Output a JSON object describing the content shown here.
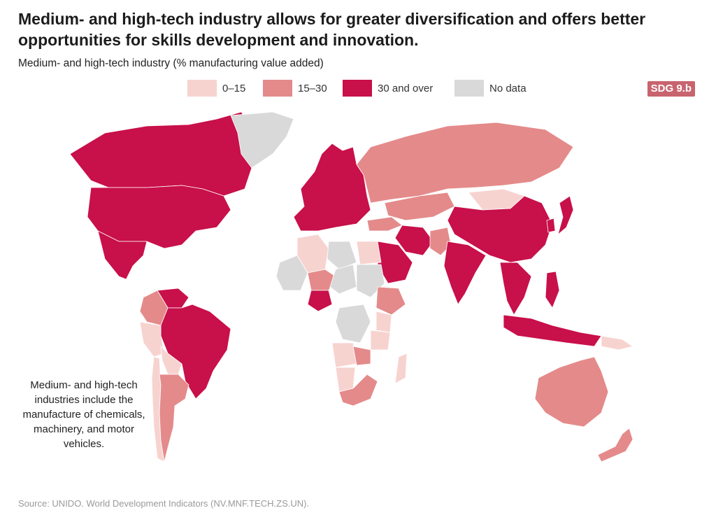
{
  "title": "Medium- and high-tech industry allows for greater diversification and offers better opportunities for skills development and innovation.",
  "subtitle": "Medium- and high-tech industry (% manufacturing value added)",
  "badge": "SDG 9.b",
  "legend": [
    {
      "label": "0–15",
      "color": "#f7d3d0"
    },
    {
      "label": "15–30",
      "color": "#e48a8a"
    },
    {
      "label": "30 and over",
      "color": "#c8104a"
    },
    {
      "label": "No data",
      "color": "#d9d9d9"
    }
  ],
  "note": "Medium- and high-tech industries include the manufacture of chemicals, machinery, and motor vehicles.",
  "source": "Source: UNIDO. World Development Indicators (NV.MNF.TECH.ZS.UN).",
  "regions": [
    {
      "name": "Canada",
      "class": "30 and over"
    },
    {
      "name": "United States",
      "class": "30 and over"
    },
    {
      "name": "Mexico",
      "class": "30 and over"
    },
    {
      "name": "Greenland",
      "class": "No data"
    },
    {
      "name": "Brazil",
      "class": "30 and over"
    },
    {
      "name": "Colombia",
      "class": "15–30"
    },
    {
      "name": "Venezuela",
      "class": "30 and over"
    },
    {
      "name": "Peru",
      "class": "0–15"
    },
    {
      "name": "Bolivia",
      "class": "0–15"
    },
    {
      "name": "Chile",
      "class": "0–15"
    },
    {
      "name": "Argentina",
      "class": "15–30"
    },
    {
      "name": "Europe",
      "class": "30 and over"
    },
    {
      "name": "Russia",
      "class": "15–30"
    },
    {
      "name": "Kazakhstan",
      "class": "15–30"
    },
    {
      "name": "Mongolia",
      "class": "0–15"
    },
    {
      "name": "China",
      "class": "30 and over"
    },
    {
      "name": "India",
      "class": "30 and over"
    },
    {
      "name": "Iran",
      "class": "30 and over"
    },
    {
      "name": "Saudi Arabia",
      "class": "30 and over"
    },
    {
      "name": "Turkey",
      "class": "15–30"
    },
    {
      "name": "Pakistan",
      "class": "15–30"
    },
    {
      "name": "Japan",
      "class": "30 and over"
    },
    {
      "name": "South Korea",
      "class": "30 and over"
    },
    {
      "name": "Indonesia",
      "class": "30 and over"
    },
    {
      "name": "Philippines",
      "class": "30 and over"
    },
    {
      "name": "Southeast Asia",
      "class": "30 and over"
    },
    {
      "name": "Papua New Guinea",
      "class": "0–15"
    },
    {
      "name": "Australia",
      "class": "15–30"
    },
    {
      "name": "New Zealand",
      "class": "15–30"
    },
    {
      "name": "Algeria",
      "class": "0–15"
    },
    {
      "name": "Libya",
      "class": "No data"
    },
    {
      "name": "Egypt",
      "class": "0–15"
    },
    {
      "name": "Mali",
      "class": "No data"
    },
    {
      "name": "Niger",
      "class": "15–30"
    },
    {
      "name": "Nigeria",
      "class": "30 and over"
    },
    {
      "name": "Chad",
      "class": "No data"
    },
    {
      "name": "Sudan",
      "class": "No data"
    },
    {
      "name": "Ethiopia",
      "class": "15–30"
    },
    {
      "name": "DR Congo",
      "class": "No data"
    },
    {
      "name": "Kenya",
      "class": "0–15"
    },
    {
      "name": "Tanzania",
      "class": "0–15"
    },
    {
      "name": "Angola",
      "class": "0–15"
    },
    {
      "name": "Namibia",
      "class": "0–15"
    },
    {
      "name": "Zambia",
      "class": "15–30"
    },
    {
      "name": "South Africa",
      "class": "15–30"
    },
    {
      "name": "Madagascar",
      "class": "0–15"
    }
  ]
}
